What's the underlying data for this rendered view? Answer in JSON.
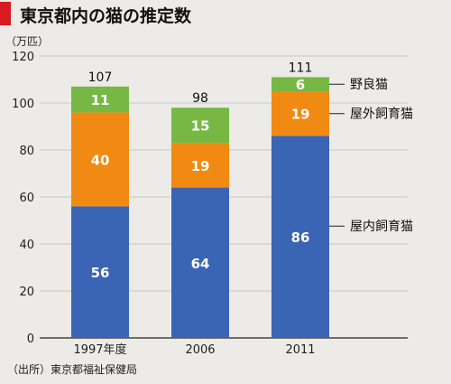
{
  "title": "東京都内の猫の推定数",
  "source": "（出所）東京都福祉保健局",
  "colors": {
    "indoor": "#3a64b4",
    "outdoor": "#f08a12",
    "stray": "#76b843",
    "title_mark": "#d81a21",
    "background": "#ecebe7"
  },
  "chart_data": {
    "type": "bar",
    "stacked": true,
    "unit": "（万匹）",
    "categories": [
      "1997年度",
      "2006",
      "2011"
    ],
    "series": [
      {
        "name": "屋内飼育猫",
        "values": [
          56,
          64,
          86
        ]
      },
      {
        "name": "屋外飼育猫",
        "values": [
          40,
          19,
          19
        ]
      },
      {
        "name": "野良猫",
        "values": [
          11,
          15,
          6
        ]
      }
    ],
    "totals": [
      107,
      98,
      111
    ],
    "ylim": [
      0,
      120
    ],
    "yticks": [
      0,
      20,
      40,
      60,
      80,
      100,
      120
    ],
    "grid": true,
    "legend": "right"
  }
}
